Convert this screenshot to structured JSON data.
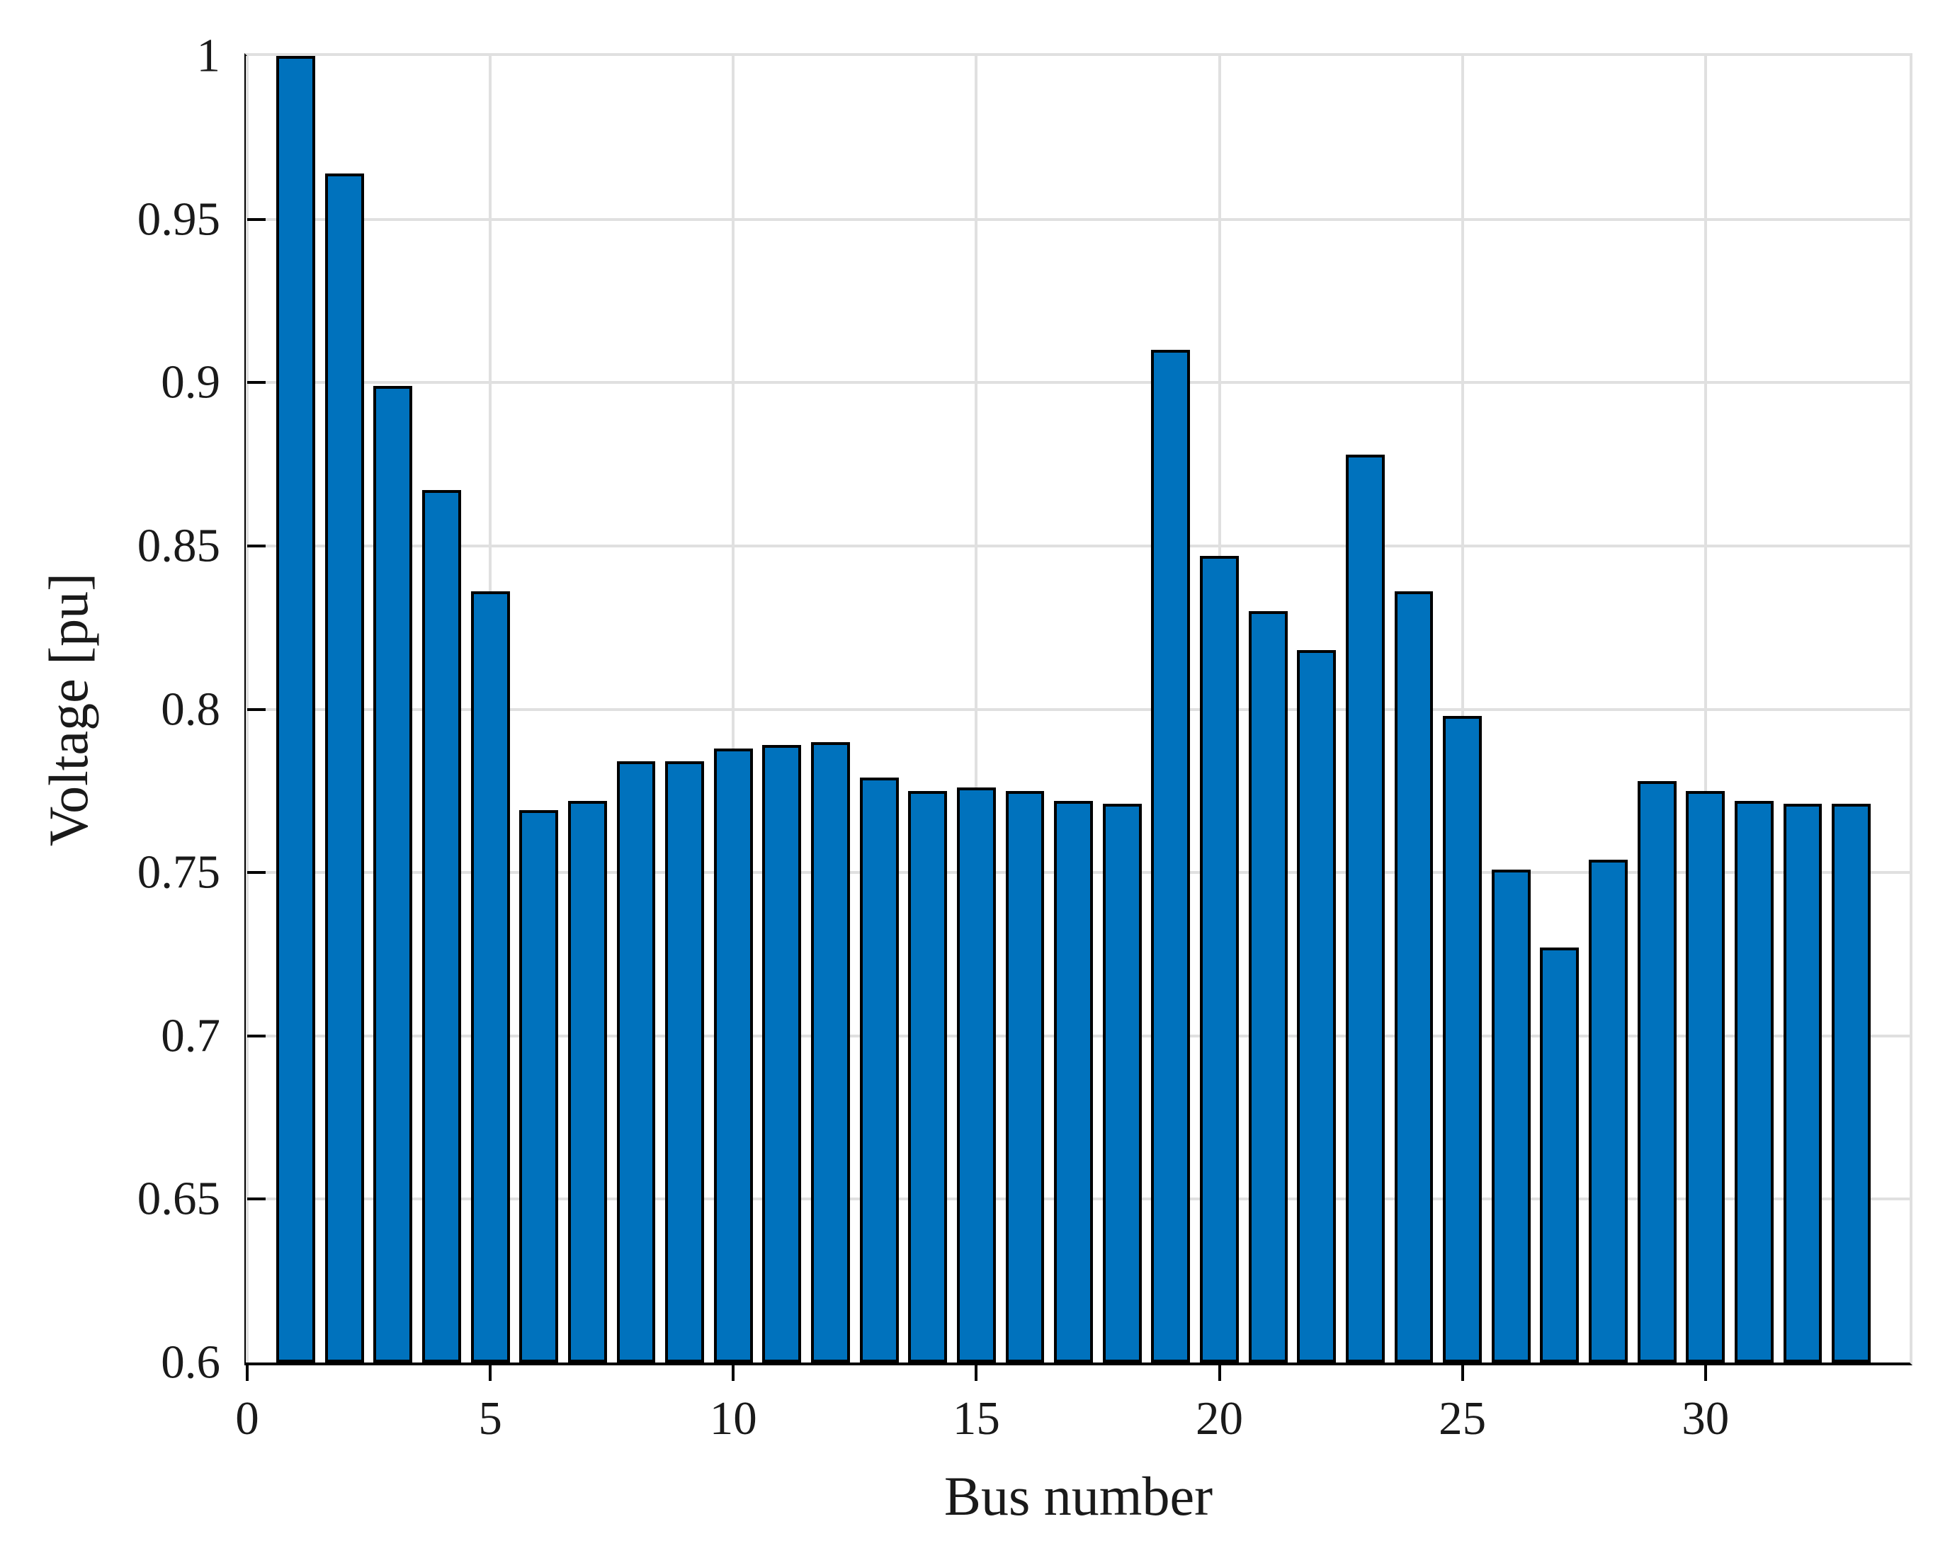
{
  "chart_data": {
    "type": "bar",
    "title": "",
    "xlabel": "Bus number",
    "ylabel": "Voltage [pu]",
    "categories": [
      1,
      2,
      3,
      4,
      5,
      6,
      7,
      8,
      9,
      10,
      11,
      12,
      13,
      14,
      15,
      16,
      17,
      18,
      19,
      20,
      21,
      22,
      23,
      24,
      25,
      26,
      27,
      28,
      29,
      30,
      31,
      32,
      33
    ],
    "values": [
      1.0,
      0.964,
      0.899,
      0.867,
      0.836,
      0.769,
      0.772,
      0.784,
      0.784,
      0.788,
      0.789,
      0.79,
      0.779,
      0.775,
      0.776,
      0.775,
      0.772,
      0.771,
      0.91,
      0.847,
      0.83,
      0.818,
      0.878,
      0.836,
      0.798,
      0.751,
      0.727,
      0.754,
      0.778,
      0.775,
      0.772,
      0.771,
      0.771
    ],
    "xlim": [
      0,
      34.2
    ],
    "ylim": [
      0.6,
      1.0
    ],
    "xticks": [
      0,
      5,
      10,
      15,
      20,
      25,
      30
    ],
    "xtick_labels": [
      "0",
      "5",
      "10",
      "15",
      "20",
      "25",
      "30"
    ],
    "yticks": [
      0.6,
      0.65,
      0.7,
      0.75,
      0.8,
      0.85,
      0.9,
      0.95,
      1.0
    ],
    "ytick_labels": [
      "0.6",
      "0.65",
      "0.7",
      "0.75",
      "0.8",
      "0.85",
      "0.9",
      "0.95",
      "1"
    ],
    "bar_width_ratio": 0.8,
    "grid": true,
    "legend_position": "none",
    "colors": {
      "bar_fill": "#0072BD",
      "bar_edge": "#000000",
      "grid": "#E0E0E0",
      "axis": "#000000",
      "text": "#1A1A1A",
      "background": "#FFFFFF"
    }
  }
}
